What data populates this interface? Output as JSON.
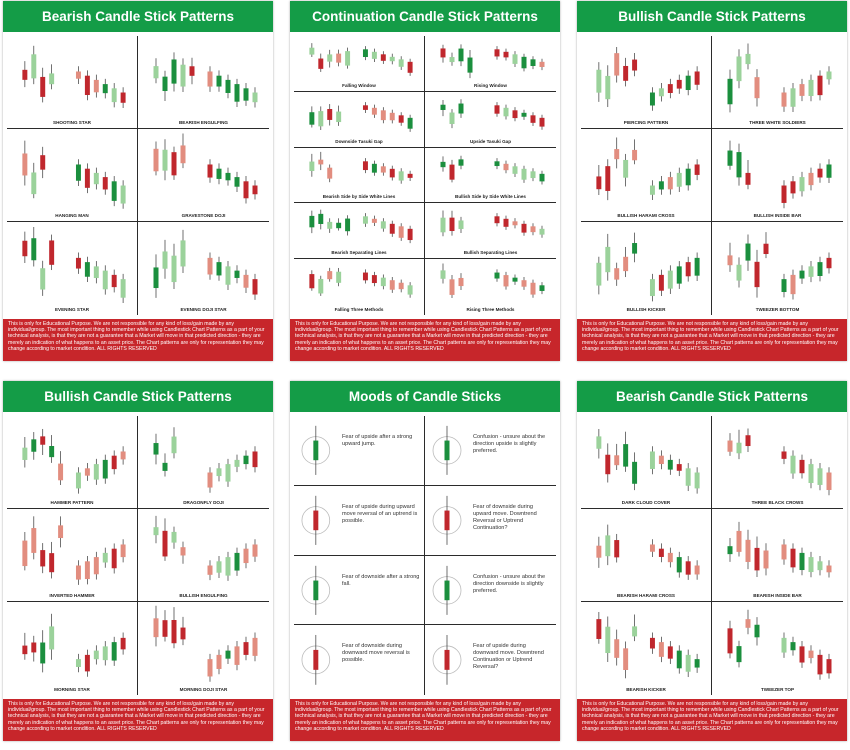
{
  "disclaimer": "This is only for Educational Purpose. We are not responsible for any kind of loss/gain made by any individual/group. The most important thing to remember while using Candlestick Chart Patterns as a part of your technical analysis, is that they are not a guarantee that a Market will move in that predicted direction - they are merely an indication of what happens to an asset price. The Chart patterns are only for representation they may change according to market condition. ALL RIGHTS RESERVED",
  "colors": {
    "header_green": "#149c47",
    "footer_red": "#c7262b",
    "candle_red": "#c0272d",
    "candle_green": "#1b8f3e",
    "candle_light_green": "#9bd29b",
    "candle_pink": "#e28d7f"
  },
  "posters": [
    {
      "title": "Bearish Candle Stick Patterns",
      "patterns": [
        "SHOOTING STAR",
        "BEARISH ENGULFING",
        "HANGING MAN",
        "GRAVESTONE DOJI",
        "EVENING STAR",
        "EVENING DOJI STAR"
      ]
    },
    {
      "title": "Continuation Candle Stick Patterns",
      "patterns": [
        "Falling Window",
        "Rising Window",
        "Downside Tasuki Gap",
        "Upside Tasuki Gap",
        "Bearish Side by Side White Lines",
        "Bullish Side by Side White Lines",
        "Bearish Separating Lines",
        "Bullish Separating Lines",
        "Falling Three Methods",
        "Rising Three Methods"
      ]
    },
    {
      "title": "Bullish Candle Stick Patterns",
      "patterns": [
        "PIERCING PATTERN",
        "THREE WHITE SOLDIERS",
        "BULLISH HARAMI CROSS",
        "BULLISH INSIDE BAR",
        "BULLISH KICKER",
        "TWEEZER BOTTOM"
      ]
    },
    {
      "title": "Bullish Candle Stick Patterns",
      "patterns": [
        "HAMMER PATTERN",
        "DRAGONFLY DOJI",
        "INVERTED HAMMER",
        "BULLISH ENGULFING",
        "MORNING STAR",
        "MORNING DOJI STAR"
      ]
    },
    {
      "title": "Moods of Candle Sticks",
      "moods": [
        "Fear of upside after a strong upward jump.",
        "Confusion - unsure about the direction upside is slightly preferred.",
        "Fear of upside during upward move reversal of an uptrend is possible.",
        "Fear of downside during upward move. Downtrend Reversal or Uptrend Continuation?",
        "Fear of downside after a strong fall.",
        "Confusion - unsure about the direction downside is slightly preferred.",
        "Fear of downside during downward move reversal is possible.",
        "Fear of upside during downward move. Downtrend Continuation or Uptrend Reversal?"
      ]
    },
    {
      "title": "Bearish Candle Stick Patterns",
      "patterns": [
        "DARK CLOUD COVER",
        "THREE BLACK CROWS",
        "BEARISH HARAMI CROSS",
        "BEARISH INSIDE BAR",
        "BEARISH KICKER",
        "TWEEZER TOP"
      ]
    }
  ]
}
